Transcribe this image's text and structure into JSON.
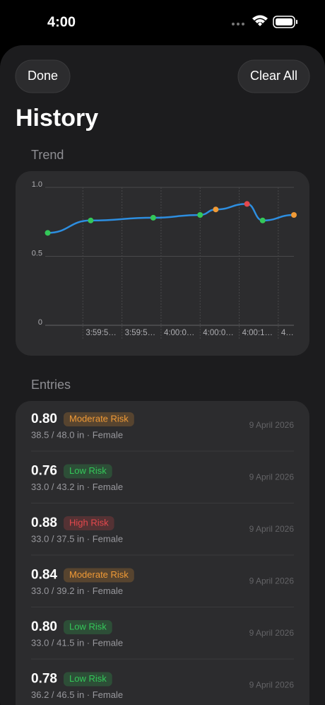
{
  "status_bar": {
    "time": "4:00"
  },
  "header": {
    "done": "Done",
    "clear_all": "Clear All",
    "title": "History"
  },
  "trend_label": "Trend",
  "chart_data": {
    "type": "line",
    "x": [
      14385.5,
      14391,
      14399,
      14405,
      14407,
      14411,
      14413,
      14417
    ],
    "series": [
      {
        "color": "#2d8ee0",
        "values": [
          0.67,
          0.76,
          0.78,
          0.8,
          0.84,
          0.88,
          0.76,
          0.8
        ],
        "point_colors": [
          "#34c759",
          "#34c759",
          "#34c759",
          "#34c759",
          "#f09a36",
          "#e5484d",
          "#34c759",
          "#f09a36"
        ]
      }
    ],
    "xlim": [
      14385,
      14417
    ],
    "xticks": [
      {
        "value": 14390,
        "label": "3:59:5…"
      },
      {
        "value": 14395,
        "label": "3:59:5…"
      },
      {
        "value": 14400,
        "label": "4:00:0…"
      },
      {
        "value": 14405,
        "label": "4:00:0…"
      },
      {
        "value": 14410,
        "label": "4:00:1…"
      },
      {
        "value": 14415,
        "label": "4…"
      }
    ],
    "ylim": [
      0,
      1
    ],
    "yticks": [
      0,
      0.5,
      {
        "value": 1,
        "label": "1.0"
      }
    ],
    "grid": true
  },
  "entries_label": "Entries",
  "entries": [
    {
      "score": "0.80",
      "risk": "Moderate Risk",
      "color": "#f09a36",
      "measure": "38.5 / 48.0 in · Female",
      "date": "9 April 2026"
    },
    {
      "score": "0.76",
      "risk": "Low Risk",
      "color": "#34c759",
      "measure": "33.0 / 43.2 in · Female",
      "date": "9 April 2026"
    },
    {
      "score": "0.88",
      "risk": "High Risk",
      "color": "#e5484d",
      "measure": "33.0 / 37.5 in · Female",
      "date": "9 April 2026"
    },
    {
      "score": "0.84",
      "risk": "Moderate Risk",
      "color": "#f09a36",
      "measure": "33.0 / 39.2 in · Female",
      "date": "9 April 2026"
    },
    {
      "score": "0.80",
      "risk": "Low Risk",
      "color": "#34c759",
      "measure": "33.0 / 41.5 in · Female",
      "date": "9 April 2026"
    },
    {
      "score": "0.78",
      "risk": "Low Risk",
      "color": "#34c759",
      "measure": "36.2 / 46.5 in · Female",
      "date": "9 April 2026"
    }
  ]
}
